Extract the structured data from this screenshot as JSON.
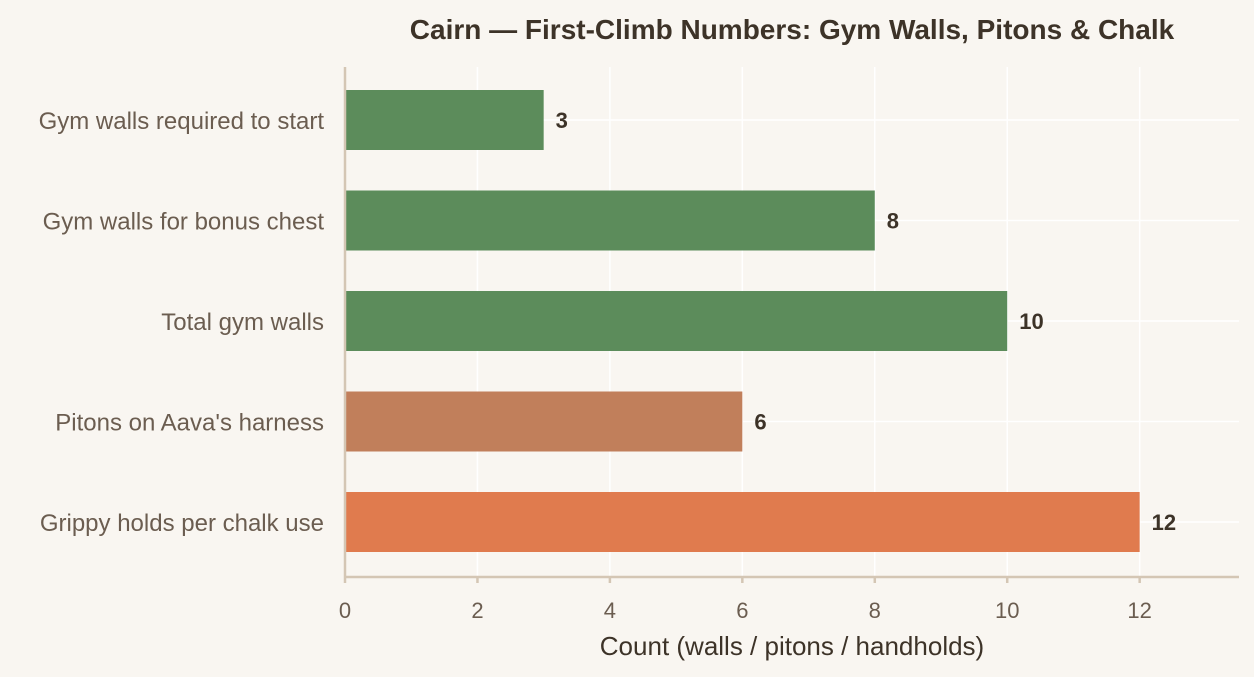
{
  "chart_data": {
    "type": "bar",
    "orientation": "horizontal",
    "title": "Cairn — First-Climb Numbers: Gym Walls, Pitons & Chalk",
    "xlabel": "Count (walls / pitons / handholds)",
    "ylabel": "",
    "xlim": [
      0,
      13.5
    ],
    "xticks": [
      0,
      2,
      4,
      6,
      8,
      10,
      12
    ],
    "grid": true,
    "categories": [
      "Gym walls required to start",
      "Gym walls for bonus chest",
      "Total gym walls",
      "Pitons on Aava's harness",
      "Grippy holds per chalk use"
    ],
    "values": [
      3,
      8,
      10,
      6,
      12
    ],
    "colors": [
      "#5c8c5b",
      "#5c8c5b",
      "#5c8c5b",
      "#c17f5b",
      "#e07b4e"
    ],
    "background": "#f9f6f1",
    "axis_color": "#d4c6b4",
    "grid_color": "#ffffff"
  }
}
